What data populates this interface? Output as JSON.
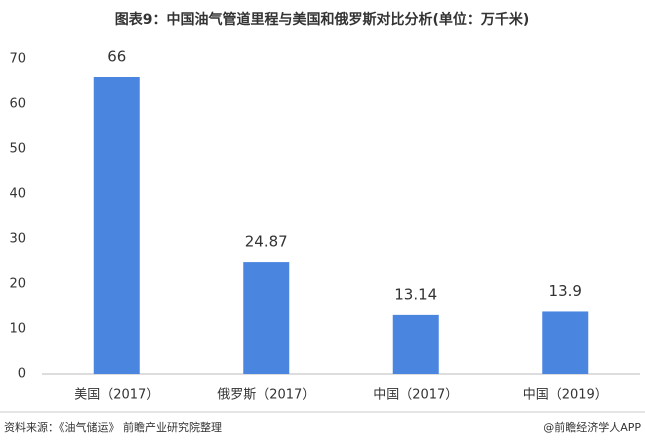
{
  "chart_data": {
    "type": "bar",
    "title": "图表9：中国油气管道里程与美国和俄罗斯对比分析(单位：万千米)",
    "categories": [
      "美国（2017）",
      "俄罗斯（2017）",
      "中国（2017）",
      "中国（2019）"
    ],
    "values": [
      66,
      24.87,
      13.14,
      13.9
    ],
    "color": "#4a86e0",
    "ylim": [
      0,
      70
    ],
    "yticks": [
      0,
      10,
      20,
      30,
      40,
      50,
      60,
      70
    ],
    "grid": false,
    "source": "资料来源：《油气储运》 前瞻产业研究院整理",
    "credit": "@前瞻经济学人APP"
  }
}
